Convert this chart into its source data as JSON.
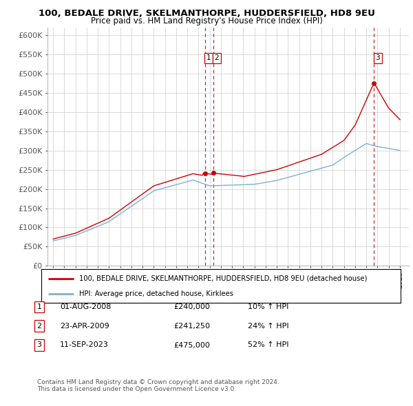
{
  "title1": "100, BEDALE DRIVE, SKELMANTHORPE, HUDDERSFIELD, HD8 9EU",
  "title2": "Price paid vs. HM Land Registry's House Price Index (HPI)",
  "legend_label_red": "100, BEDALE DRIVE, SKELMANTHORPE, HUDDERSFIELD, HD8 9EU (detached house)",
  "legend_label_blue": "HPI: Average price, detached house, Kirklees",
  "footer1": "Contains HM Land Registry data © Crown copyright and database right 2024.",
  "footer2": "This data is licensed under the Open Government Licence v3.0.",
  "transactions": [
    {
      "num": 1,
      "date": "01-AUG-2008",
      "price": "£240,000",
      "hpi": "10% ↑ HPI"
    },
    {
      "num": 2,
      "date": "23-APR-2009",
      "price": "£241,250",
      "hpi": "24% ↑ HPI"
    },
    {
      "num": 3,
      "date": "11-SEP-2023",
      "price": "£475,000",
      "hpi": "52% ↑ HPI"
    }
  ],
  "vline_dates": [
    2008.58,
    2009.31,
    2023.69
  ],
  "trans_points": [
    [
      2008.58,
      240000,
      "1"
    ],
    [
      2009.31,
      241250,
      "2"
    ],
    [
      2023.69,
      475000,
      "3"
    ]
  ],
  "ylim": [
    0,
    620000
  ],
  "yticks": [
    0,
    50000,
    100000,
    150000,
    200000,
    250000,
    300000,
    350000,
    400000,
    450000,
    500000,
    550000,
    600000
  ],
  "xlim": [
    1994.5,
    2026.8
  ],
  "xtick_start": 1995,
  "xtick_end": 2026,
  "red_color": "#cc0000",
  "blue_color": "#7fafd4",
  "vline_color": "#cc0000",
  "grid_color": "#cccccc",
  "background_color": "#ffffff",
  "hpi_years": [
    1995.0,
    1995.08,
    1995.17,
    1995.25,
    1995.33,
    1995.42,
    1995.5,
    1995.58,
    1995.67,
    1995.75,
    1995.83,
    1995.92,
    1996.0,
    1996.08,
    1996.17,
    1996.25,
    1996.33,
    1996.42,
    1996.5,
    1996.58,
    1996.67,
    1996.75,
    1996.83,
    1996.92,
    1997.0,
    1997.08,
    1997.17,
    1997.25,
    1997.33,
    1997.42,
    1997.5,
    1997.58,
    1997.67,
    1997.75,
    1997.83,
    1997.92,
    1998.0,
    1998.08,
    1998.17,
    1998.25,
    1998.33,
    1998.42,
    1998.5,
    1998.58,
    1998.67,
    1998.75,
    1998.83,
    1998.92,
    1999.0,
    1999.08,
    1999.17,
    1999.25,
    1999.33,
    1999.42,
    1999.5,
    1999.58,
    1999.67,
    1999.75,
    1999.83,
    1999.92,
    2000.0,
    2000.08,
    2000.17,
    2000.25,
    2000.33,
    2000.42,
    2000.5,
    2000.58,
    2000.67,
    2000.75,
    2000.83,
    2000.92,
    2001.0,
    2001.08,
    2001.17,
    2001.25,
    2001.33,
    2001.42,
    2001.5,
    2001.58,
    2001.67,
    2001.75,
    2001.83,
    2001.92,
    2002.0,
    2002.08,
    2002.17,
    2002.25,
    2002.33,
    2002.42,
    2002.5,
    2002.58,
    2002.67,
    2002.75,
    2002.83,
    2002.92,
    2003.0,
    2003.08,
    2003.17,
    2003.25,
    2003.33,
    2003.42,
    2003.5,
    2003.58,
    2003.67,
    2003.75,
    2003.83,
    2003.92,
    2004.0,
    2004.08,
    2004.17,
    2004.25,
    2004.33,
    2004.42,
    2004.5,
    2004.58,
    2004.67,
    2004.75,
    2004.83,
    2004.92,
    2005.0,
    2005.08,
    2005.17,
    2005.25,
    2005.33,
    2005.42,
    2005.5,
    2005.58,
    2005.67,
    2005.75,
    2005.83,
    2005.92,
    2006.0,
    2006.08,
    2006.17,
    2006.25,
    2006.33,
    2006.42,
    2006.5,
    2006.58,
    2006.67,
    2006.75,
    2006.83,
    2006.92,
    2007.0,
    2007.08,
    2007.17,
    2007.25,
    2007.33,
    2007.42,
    2007.5,
    2007.58,
    2007.67,
    2007.75,
    2007.83,
    2007.92,
    2008.0,
    2008.08,
    2008.17,
    2008.25,
    2008.33,
    2008.42,
    2008.5,
    2008.58,
    2008.67,
    2008.75,
    2008.83,
    2008.92,
    2009.0,
    2009.08,
    2009.17,
    2009.25,
    2009.33,
    2009.42,
    2009.5,
    2009.58,
    2009.67,
    2009.75,
    2009.83,
    2009.92,
    2010.0,
    2010.08,
    2010.17,
    2010.25,
    2010.33,
    2010.42,
    2010.5,
    2010.58,
    2010.67,
    2010.75,
    2010.83,
    2010.92,
    2011.0,
    2011.08,
    2011.17,
    2011.25,
    2011.33,
    2011.42,
    2011.5,
    2011.58,
    2011.67,
    2011.75,
    2011.83,
    2011.92,
    2012.0,
    2012.08,
    2012.17,
    2012.25,
    2012.33,
    2012.42,
    2012.5,
    2012.58,
    2012.67,
    2012.75,
    2012.83,
    2012.92,
    2013.0,
    2013.08,
    2013.17,
    2013.25,
    2013.33,
    2013.42,
    2013.5,
    2013.58,
    2013.67,
    2013.75,
    2013.83,
    2013.92,
    2014.0,
    2014.08,
    2014.17,
    2014.25,
    2014.33,
    2014.42,
    2014.5,
    2014.58,
    2014.67,
    2014.75,
    2014.83,
    2014.92,
    2015.0,
    2015.08,
    2015.17,
    2015.25,
    2015.33,
    2015.42,
    2015.5,
    2015.58,
    2015.67,
    2015.75,
    2015.83,
    2015.92,
    2016.0,
    2016.08,
    2016.17,
    2016.25,
    2016.33,
    2016.42,
    2016.5,
    2016.58,
    2016.67,
    2016.75,
    2016.83,
    2016.92,
    2017.0,
    2017.08,
    2017.17,
    2017.25,
    2017.33,
    2017.42,
    2017.5,
    2017.58,
    2017.67,
    2017.75,
    2017.83,
    2017.92,
    2018.0,
    2018.08,
    2018.17,
    2018.25,
    2018.33,
    2018.42,
    2018.5,
    2018.58,
    2018.67,
    2018.75,
    2018.83,
    2018.92,
    2019.0,
    2019.08,
    2019.17,
    2019.25,
    2019.33,
    2019.42,
    2019.5,
    2019.58,
    2019.67,
    2019.75,
    2019.83,
    2019.92,
    2020.0,
    2020.08,
    2020.17,
    2020.25,
    2020.33,
    2020.42,
    2020.5,
    2020.58,
    2020.67,
    2020.75,
    2020.83,
    2020.92,
    2021.0,
    2021.08,
    2021.17,
    2021.25,
    2021.33,
    2021.42,
    2021.5,
    2021.58,
    2021.67,
    2021.75,
    2021.83,
    2021.92,
    2022.0,
    2022.08,
    2022.17,
    2022.25,
    2022.33,
    2022.42,
    2022.5,
    2022.58,
    2022.67,
    2022.75,
    2022.83,
    2022.92,
    2023.0,
    2023.08,
    2023.17,
    2023.25,
    2023.33,
    2023.42,
    2023.5,
    2023.58,
    2023.67,
    2023.75,
    2023.83,
    2023.92,
    2024.0,
    2024.08,
    2024.17,
    2024.25,
    2024.33,
    2024.42,
    2024.5,
    2024.58,
    2024.67,
    2024.75,
    2024.83,
    2024.92,
    2025.0,
    2025.5,
    2026.0
  ]
}
